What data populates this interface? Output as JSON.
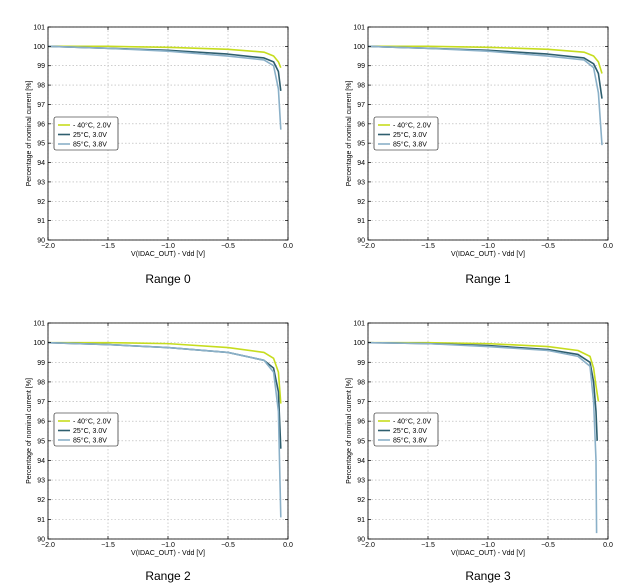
{
  "colors": {
    "minus40": "#c6dc1e",
    "plus25": "#2e5e6e",
    "plus85": "#8ab0c8",
    "grid": "#b0b0b0",
    "axis": "#000000"
  },
  "chart_data": [
    {
      "type": "line",
      "caption": "Range 0",
      "xlabel": "V(IDAC_OUT) - Vdd [V]",
      "ylabel": "Percentage of nominal current [%]",
      "xlim": [
        -2.0,
        0.0
      ],
      "ylim": [
        90,
        101
      ],
      "xticks": [
        "−2.0",
        "−1.5",
        "−1.0",
        "−0.5",
        "0.0"
      ],
      "yticks": [
        "90",
        "91",
        "92",
        "93",
        "94",
        "95",
        "96",
        "97",
        "98",
        "99",
        "100",
        "101"
      ],
      "grid": true,
      "legend": "left",
      "series": [
        {
          "name": "- 40°C, 2.0V",
          "x": [
            -2.0,
            -1.5,
            -1.0,
            -0.5,
            -0.2,
            -0.12,
            -0.08,
            -0.06
          ],
          "y": [
            100.0,
            100.0,
            99.95,
            99.85,
            99.7,
            99.5,
            99.2,
            98.9
          ]
        },
        {
          "name": "25°C, 3.0V",
          "x": [
            -2.0,
            -1.5,
            -1.0,
            -0.5,
            -0.2,
            -0.12,
            -0.08,
            -0.06
          ],
          "y": [
            100.0,
            99.9,
            99.8,
            99.6,
            99.4,
            99.2,
            98.7,
            97.7
          ]
        },
        {
          "name": "85°C, 3.8V",
          "x": [
            -2.0,
            -1.5,
            -1.0,
            -0.5,
            -0.2,
            -0.12,
            -0.08,
            -0.06
          ],
          "y": [
            100.0,
            99.9,
            99.75,
            99.5,
            99.3,
            99.0,
            97.8,
            95.7
          ]
        }
      ]
    },
    {
      "type": "line",
      "caption": "Range 1",
      "xlabel": "V(IDAC_OUT) - Vdd [V]",
      "ylabel": "Percentage of nominal current [%]",
      "xlim": [
        -2.0,
        0.0
      ],
      "ylim": [
        90,
        101
      ],
      "xticks": [
        "−2.0",
        "−1.5",
        "−1.0",
        "−0.5",
        "0.0"
      ],
      "yticks": [
        "90",
        "91",
        "92",
        "93",
        "94",
        "95",
        "96",
        "97",
        "98",
        "99",
        "100",
        "101"
      ],
      "grid": true,
      "legend": "left",
      "series": [
        {
          "name": "- 40°C, 2.0V",
          "x": [
            -2.0,
            -1.5,
            -1.0,
            -0.5,
            -0.2,
            -0.12,
            -0.08,
            -0.05
          ],
          "y": [
            100.0,
            100.0,
            99.95,
            99.85,
            99.7,
            99.5,
            99.2,
            98.6
          ]
        },
        {
          "name": "25°C, 3.0V",
          "x": [
            -2.0,
            -1.5,
            -1.0,
            -0.5,
            -0.2,
            -0.12,
            -0.08,
            -0.05
          ],
          "y": [
            100.0,
            99.9,
            99.8,
            99.6,
            99.4,
            99.1,
            98.6,
            97.3
          ]
        },
        {
          "name": "85°C, 3.8V",
          "x": [
            -2.0,
            -1.5,
            -1.0,
            -0.5,
            -0.2,
            -0.12,
            -0.08,
            -0.05
          ],
          "y": [
            100.0,
            99.9,
            99.75,
            99.5,
            99.3,
            98.9,
            97.6,
            94.9
          ]
        }
      ]
    },
    {
      "type": "line",
      "caption": "Range 2",
      "xlabel": "V(IDAC_OUT) - Vdd [V]",
      "ylabel": "Percentage of nominal current [%]",
      "xlim": [
        -2.0,
        0.0
      ],
      "ylim": [
        90,
        101
      ],
      "xticks": [
        "−2.0",
        "−1.5",
        "−1.0",
        "−0.5",
        "0.0"
      ],
      "yticks": [
        "90",
        "91",
        "92",
        "93",
        "94",
        "95",
        "96",
        "97",
        "98",
        "99",
        "100",
        "101"
      ],
      "grid": true,
      "legend": "left",
      "series": [
        {
          "name": "- 40°C, 2.0V",
          "x": [
            -2.0,
            -1.5,
            -1.0,
            -0.5,
            -0.2,
            -0.12,
            -0.08,
            -0.06
          ],
          "y": [
            100.0,
            100.0,
            99.95,
            99.75,
            99.5,
            99.2,
            98.5,
            96.9
          ]
        },
        {
          "name": "25°C, 3.0V",
          "x": [
            -2.0,
            -1.5,
            -1.0,
            -0.5,
            -0.2,
            -0.12,
            -0.08,
            -0.06
          ],
          "y": [
            100.0,
            99.9,
            99.75,
            99.5,
            99.1,
            98.7,
            97.5,
            94.6
          ]
        },
        {
          "name": "85°C, 3.8V",
          "x": [
            -2.0,
            -1.5,
            -1.0,
            -0.5,
            -0.2,
            -0.12,
            -0.08,
            -0.06
          ],
          "y": [
            100.0,
            99.9,
            99.75,
            99.5,
            99.1,
            98.5,
            96.5,
            91.1
          ]
        }
      ]
    },
    {
      "type": "line",
      "caption": "Range 3",
      "xlabel": "V(IDAC_OUT) - Vdd [V]",
      "ylabel": "Percentage of nominal current [%]",
      "xlim": [
        -2.0,
        0.0
      ],
      "ylim": [
        90,
        101
      ],
      "xticks": [
        "−2.0",
        "−1.5",
        "−1.0",
        "−0.5",
        "0.0"
      ],
      "yticks": [
        "90",
        "91",
        "92",
        "93",
        "94",
        "95",
        "96",
        "97",
        "98",
        "99",
        "100",
        "101"
      ],
      "grid": true,
      "legend": "left",
      "series": [
        {
          "name": "- 40°C, 2.0V",
          "x": [
            -2.0,
            -1.5,
            -1.0,
            -0.5,
            -0.25,
            -0.15,
            -0.12,
            -0.1,
            -0.08
          ],
          "y": [
            100.0,
            100.0,
            99.95,
            99.8,
            99.6,
            99.3,
            98.7,
            97.8,
            97.0
          ]
        },
        {
          "name": "25°C, 3.0V",
          "x": [
            -2.0,
            -1.5,
            -1.0,
            -0.5,
            -0.25,
            -0.15,
            -0.12,
            -0.1,
            -0.09
          ],
          "y": [
            100.0,
            99.95,
            99.85,
            99.65,
            99.4,
            99.0,
            98.0,
            96.5,
            95.0
          ]
        },
        {
          "name": "85°C, 3.8V",
          "x": [
            -2.0,
            -1.5,
            -1.0,
            -0.5,
            -0.25,
            -0.15,
            -0.12,
            -0.1,
            -0.095
          ],
          "y": [
            100.0,
            99.95,
            99.8,
            99.6,
            99.3,
            98.8,
            97.0,
            94.0,
            90.3
          ]
        }
      ]
    }
  ]
}
